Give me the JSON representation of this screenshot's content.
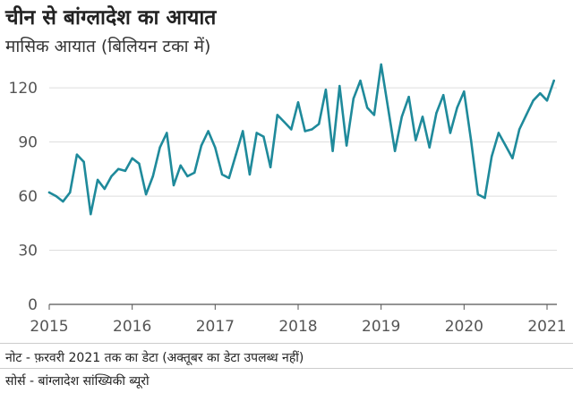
{
  "chart_data": {
    "type": "line",
    "title": "चीन से बांग्लादेश का आयात",
    "subtitle": "मासिक आयात (बिलियन टका में)",
    "xlabel": "",
    "ylabel": "",
    "ylim": [
      0,
      130
    ],
    "yticks": [
      0,
      30,
      60,
      90,
      120
    ],
    "xticks": [
      2015,
      2016,
      2017,
      2018,
      2019,
      2020,
      2021
    ],
    "grid": true,
    "color": "#1f8a9b",
    "series": [
      {
        "name": "मासिक आयात",
        "start": "2015-01",
        "values": [
          62,
          60,
          57,
          62,
          83,
          79,
          50,
          69,
          64,
          71,
          75,
          74,
          81,
          78,
          61,
          71,
          87,
          95,
          66,
          77,
          71,
          73,
          88,
          96,
          87,
          72,
          70,
          83,
          96,
          72,
          95,
          93,
          76,
          105,
          101,
          97,
          112,
          96,
          97,
          100,
          119,
          85,
          121,
          88,
          114,
          124,
          109,
          105,
          133,
          109,
          85,
          104,
          115,
          91,
          104,
          87,
          106,
          116,
          95,
          109,
          118,
          91,
          61,
          59,
          82,
          95,
          88,
          81,
          97,
          105,
          113,
          117,
          113,
          124
        ]
      }
    ]
  },
  "footer": {
    "note": "नोट - फ़रवरी 2021 तक का डेटा (अक्तूबर का डेटा उपलब्ध नहीं)",
    "source": "सोर्स - बांग्लादेश सांख्यिकी ब्यूरो"
  }
}
